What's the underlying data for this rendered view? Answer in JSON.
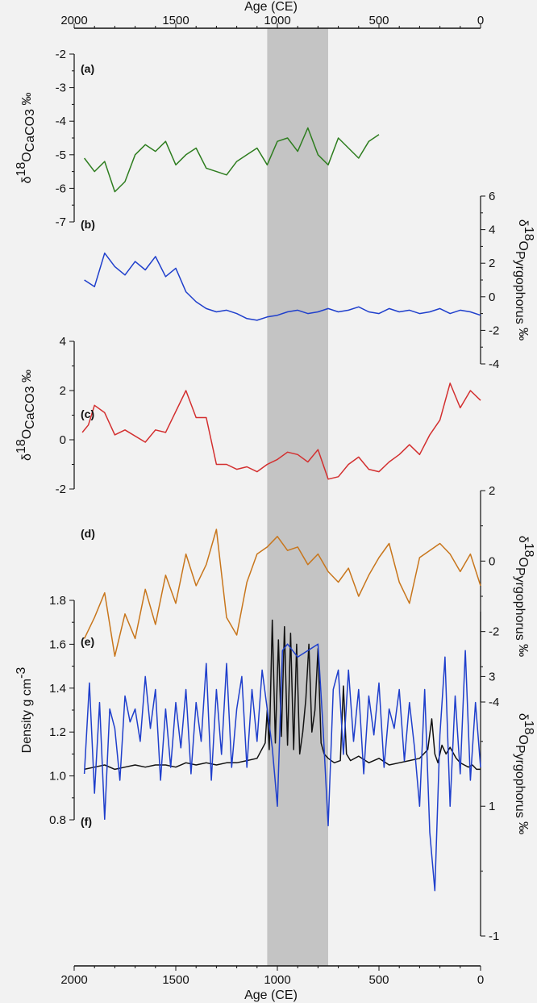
{
  "chart_data": {
    "type": "line",
    "x_axis": {
      "label": "Age (CE)",
      "range": [
        2000,
        0
      ],
      "ticks": [
        "2000",
        "1500",
        "1000",
        "500",
        "0"
      ]
    },
    "shaded_interval": {
      "from": 1050,
      "to": 750,
      "color": "#c4c4c4"
    },
    "panels": [
      {
        "id": "a",
        "label": "(a)",
        "axis_side": "left",
        "color": "#2e7d1f",
        "ylabel_prefix": "δ",
        "ylabel_sup": "18",
        "ylabel_main": "O",
        "ylabel_sub": "CaCO3",
        "ylabel_suffix": " ‰",
        "ylim": [
          -7,
          -2
        ],
        "yticks": [
          "-2",
          "-3",
          "-4",
          "-5",
          "-6",
          "-7"
        ],
        "series": [
          {
            "x": [
              1950,
              1900,
              1850,
              1800,
              1750,
              1700,
              1650,
              1600,
              1550,
              1500,
              1450,
              1400,
              1350,
              1300,
              1250,
              1200,
              1150,
              1100,
              1050,
              1000,
              950,
              900,
              850,
              800,
              750,
              700,
              650,
              600,
              550,
              500
            ],
            "y": [
              -5.1,
              -5.5,
              -5.2,
              -6.1,
              -5.8,
              -5.0,
              -4.7,
              -4.9,
              -4.6,
              -5.3,
              -5.0,
              -4.8,
              -5.4,
              -5.5,
              -5.6,
              -5.2,
              -5.0,
              -4.8,
              -5.3,
              -4.6,
              -4.5,
              -4.9,
              -4.2,
              -5.0,
              -5.3,
              -4.5,
              -4.8,
              -5.1,
              -4.6,
              -4.4
            ]
          }
        ]
      },
      {
        "id": "b",
        "label": "(b)",
        "axis_side": "right",
        "color": "#1f3fcc",
        "ylabel_prefix": "δ",
        "ylabel_sup": "18",
        "ylabel_main": "O",
        "ylabel_sub": "Pyrgophorus",
        "ylabel_suffix": " ‰",
        "ylim": [
          -4,
          6
        ],
        "yticks": [
          "6",
          "4",
          "2",
          "0",
          "-2",
          "-4"
        ],
        "series": [
          {
            "x": [
              1950,
              1900,
              1850,
              1800,
              1750,
              1700,
              1650,
              1600,
              1550,
              1500,
              1450,
              1400,
              1350,
              1300,
              1250,
              1200,
              1150,
              1100,
              1050,
              1000,
              950,
              900,
              850,
              800,
              750,
              700,
              650,
              600,
              550,
              500,
              450,
              400,
              350,
              300,
              250,
              200,
              150,
              100,
              50,
              0
            ],
            "y": [
              1.0,
              0.6,
              2.6,
              1.8,
              1.3,
              2.1,
              1.6,
              2.4,
              1.2,
              1.7,
              0.3,
              -0.3,
              -0.7,
              -0.9,
              -0.8,
              -1.0,
              -1.3,
              -1.4,
              -1.2,
              -1.1,
              -0.9,
              -0.8,
              -1.0,
              -0.9,
              -0.7,
              -0.9,
              -0.8,
              -0.6,
              -0.9,
              -1.0,
              -0.7,
              -0.9,
              -0.8,
              -1.0,
              -0.9,
              -0.7,
              -1.0,
              -0.8,
              -0.9,
              -1.1
            ]
          }
        ]
      },
      {
        "id": "c",
        "label": "(c)",
        "axis_side": "left",
        "color": "#d32f2f",
        "ylabel_prefix": "δ",
        "ylabel_sup": "18",
        "ylabel_main": "O",
        "ylabel_sub": "CaCO3",
        "ylabel_suffix": " ‰",
        "ylim": [
          -2,
          4
        ],
        "yticks": [
          "4",
          "2",
          "0",
          "-2"
        ],
        "series": [
          {
            "x": [
              1960,
              1930,
              1900,
              1850,
              1800,
              1750,
              1650,
              1600,
              1550,
              1450,
              1400,
              1350,
              1300,
              1250,
              1200,
              1150,
              1100,
              1050,
              1000,
              950,
              900,
              850,
              800,
              750,
              700,
              650,
              600,
              550,
              500,
              450,
              400,
              350,
              300,
              250,
              200,
              150,
              100,
              50,
              0
            ],
            "y": [
              0.3,
              0.6,
              1.4,
              1.1,
              0.2,
              0.4,
              -0.1,
              0.4,
              0.3,
              2.0,
              0.9,
              0.9,
              -1.0,
              -1.0,
              -1.2,
              -1.1,
              -1.3,
              -1.0,
              -0.8,
              -0.5,
              -0.6,
              -0.9,
              -0.4,
              -1.6,
              -1.5,
              -1.0,
              -0.7,
              -1.2,
              -1.3,
              -0.9,
              -0.6,
              -0.2,
              -0.6,
              0.2,
              0.8,
              2.3,
              1.3,
              2.0,
              1.6
            ]
          }
        ]
      },
      {
        "id": "d",
        "label": "(d)",
        "axis_side": "right",
        "color": "#c8761c",
        "ylabel_prefix": "δ",
        "ylabel_sup": "18",
        "ylabel_main": "O",
        "ylabel_sub": "Pyrgophorus",
        "ylabel_suffix": " ‰",
        "ylim": [
          -4,
          2
        ],
        "yticks": [
          "2",
          "0",
          "-2",
          "-4"
        ],
        "series": [
          {
            "x": [
              1950,
              1900,
              1850,
              1800,
              1750,
              1700,
              1650,
              1600,
              1550,
              1500,
              1450,
              1400,
              1350,
              1300,
              1250,
              1200,
              1150,
              1100,
              1050,
              1000,
              950,
              900,
              850,
              800,
              750,
              700,
              650,
              600,
              550,
              500,
              450,
              400,
              350,
              300,
              250,
              200,
              150,
              100,
              50,
              0
            ],
            "y": [
              -2.2,
              -1.6,
              -0.9,
              -2.7,
              -1.5,
              -2.2,
              -0.8,
              -1.8,
              -0.4,
              -1.2,
              0.2,
              -0.7,
              -0.1,
              0.9,
              -1.6,
              -2.1,
              -0.6,
              0.2,
              0.4,
              0.7,
              0.3,
              0.4,
              -0.1,
              0.2,
              -0.3,
              -0.6,
              -0.2,
              -1.0,
              -0.4,
              0.1,
              0.5,
              -0.6,
              -1.2,
              0.1,
              0.3,
              0.5,
              0.2,
              -0.3,
              0.2,
              -0.7
            ]
          }
        ]
      },
      {
        "id": "e",
        "label": "(e)",
        "axis_side": "left",
        "color": "#111111",
        "ylabel_main": "Density g cm",
        "ylabel_sup": "-3",
        "ylim": [
          0.8,
          1.8
        ],
        "yticks": [
          "1.8",
          "1.6",
          "1.4",
          "1.2",
          "1.0",
          "0.8"
        ],
        "series": [
          {
            "x": [
              1950,
              1900,
              1850,
              1800,
              1750,
              1700,
              1650,
              1600,
              1550,
              1500,
              1450,
              1400,
              1350,
              1300,
              1250,
              1200,
              1150,
              1100,
              1060,
              1050,
              1040,
              1025,
              1010,
              995,
              980,
              965,
              950,
              935,
              920,
              905,
              890,
              875,
              860,
              845,
              830,
              815,
              800,
              785,
              770,
              750,
              720,
              690,
              675,
              660,
              640,
              600,
              550,
              500,
              450,
              400,
              350,
              300,
              260,
              240,
              225,
              210,
              190,
              170,
              150,
              120,
              100,
              80,
              60,
              40,
              20,
              0
            ],
            "y": [
              1.03,
              1.04,
              1.05,
              1.03,
              1.04,
              1.05,
              1.04,
              1.05,
              1.05,
              1.04,
              1.06,
              1.05,
              1.06,
              1.05,
              1.06,
              1.06,
              1.07,
              1.08,
              1.15,
              1.3,
              1.12,
              1.71,
              1.15,
              1.62,
              1.18,
              1.68,
              1.14,
              1.65,
              1.12,
              1.6,
              1.1,
              1.2,
              1.35,
              1.6,
              1.2,
              1.3,
              1.58,
              1.15,
              1.1,
              1.08,
              1.06,
              1.07,
              1.41,
              1.1,
              1.07,
              1.09,
              1.06,
              1.08,
              1.05,
              1.06,
              1.07,
              1.08,
              1.12,
              1.26,
              1.1,
              1.06,
              1.14,
              1.1,
              1.13,
              1.08,
              1.06,
              1.05,
              1.04,
              1.05,
              1.03,
              1.03
            ]
          }
        ]
      },
      {
        "id": "f",
        "label": "(f)",
        "axis_side": "right",
        "color": "#1f3fcc",
        "ylabel_prefix": "δ",
        "ylabel_sup": "18",
        "ylabel_main": "O",
        "ylabel_sub": "Pyrgophorus",
        "ylabel_suffix": " ‰",
        "ylim": [
          -1,
          4
        ],
        "yticks": [
          "3",
          "1",
          "-1"
        ],
        "series": [
          {
            "x": [
              1950,
              1925,
              1900,
              1875,
              1850,
              1825,
              1800,
              1775,
              1750,
              1725,
              1700,
              1675,
              1650,
              1625,
              1600,
              1575,
              1550,
              1525,
              1500,
              1475,
              1450,
              1425,
              1400,
              1375,
              1350,
              1325,
              1300,
              1275,
              1250,
              1225,
              1200,
              1175,
              1150,
              1125,
              1100,
              1075,
              1050,
              1025,
              1000,
              975,
              950,
              900,
              850,
              800,
              775,
              750,
              725,
              700,
              675,
              650,
              625,
              600,
              575,
              550,
              525,
              500,
              475,
              450,
              425,
              400,
              375,
              350,
              325,
              300,
              275,
              250,
              225,
              200,
              175,
              150,
              125,
              100,
              75,
              50,
              25,
              0
            ],
            "y": [
              1.5,
              2.9,
              1.2,
              2.6,
              0.8,
              2.5,
              2.2,
              1.4,
              2.7,
              2.3,
              2.5,
              2.0,
              3.0,
              2.2,
              2.8,
              1.4,
              2.5,
              1.6,
              2.6,
              1.9,
              2.8,
              1.5,
              2.6,
              2.0,
              3.2,
              1.4,
              2.8,
              1.8,
              3.2,
              1.6,
              2.5,
              3.0,
              1.6,
              2.8,
              2.0,
              3.1,
              2.5,
              1.9,
              1.0,
              3.4,
              3.5,
              3.3,
              3.4,
              3.5,
              2.2,
              0.7,
              2.8,
              3.1,
              1.8,
              3.1,
              2.0,
              2.8,
              1.5,
              2.7,
              2.1,
              2.9,
              1.6,
              2.5,
              2.2,
              2.8,
              1.7,
              2.6,
              1.9,
              1.0,
              2.8,
              0.6,
              -0.3,
              2.1,
              3.3,
              1.0,
              2.7,
              1.5,
              3.4,
              1.4,
              2.6,
              1.6
            ]
          }
        ]
      }
    ]
  }
}
